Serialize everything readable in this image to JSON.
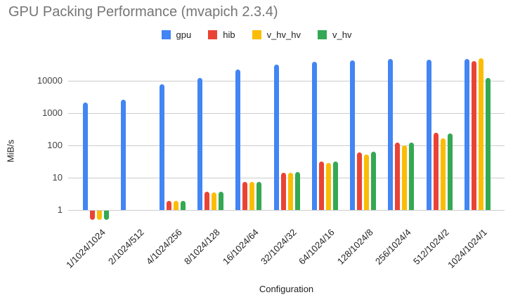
{
  "chart_data": {
    "type": "bar",
    "title": "GPU Packing Performance (mvapich 2.3.4)",
    "xlabel": "Configuration",
    "ylabel": "MiB/s",
    "scale": "log",
    "y_ticks": [
      1,
      10,
      100,
      1000,
      10000
    ],
    "ylim": [
      0.5,
      60000
    ],
    "grid": true,
    "legend_position": "top",
    "baseline": 1,
    "categories": [
      "1/1024/1024",
      "2/1024/512",
      "4/1024/256",
      "8/1024/128",
      "16/1024/64",
      "32/1024/32",
      "64/1024/16",
      "128/1024/8",
      "256/1024/4",
      "512/1024/2",
      "1024/1024/1"
    ],
    "series": [
      {
        "name": "gpu",
        "color": "#4285F4",
        "values": [
          2100,
          2600,
          7900,
          12000,
          22000,
          31500,
          39500,
          42500,
          46500,
          44500,
          47500
        ]
      },
      {
        "name": "hib",
        "color": "#EA4335",
        "values": [
          0.5,
          null,
          1.9,
          3.6,
          7.4,
          14.5,
          31,
          61,
          122,
          248,
          40500
        ]
      },
      {
        "name": "v_hv_hv",
        "color": "#FBBC04",
        "values": [
          0.5,
          null,
          1.9,
          3.5,
          7.3,
          14,
          28,
          53,
          100,
          165,
          48500
        ]
      },
      {
        "name": "v_hv",
        "color": "#34A853",
        "values": [
          0.5,
          null,
          1.9,
          3.6,
          7.4,
          15,
          31.5,
          63,
          125,
          230,
          12500
        ]
      }
    ]
  }
}
